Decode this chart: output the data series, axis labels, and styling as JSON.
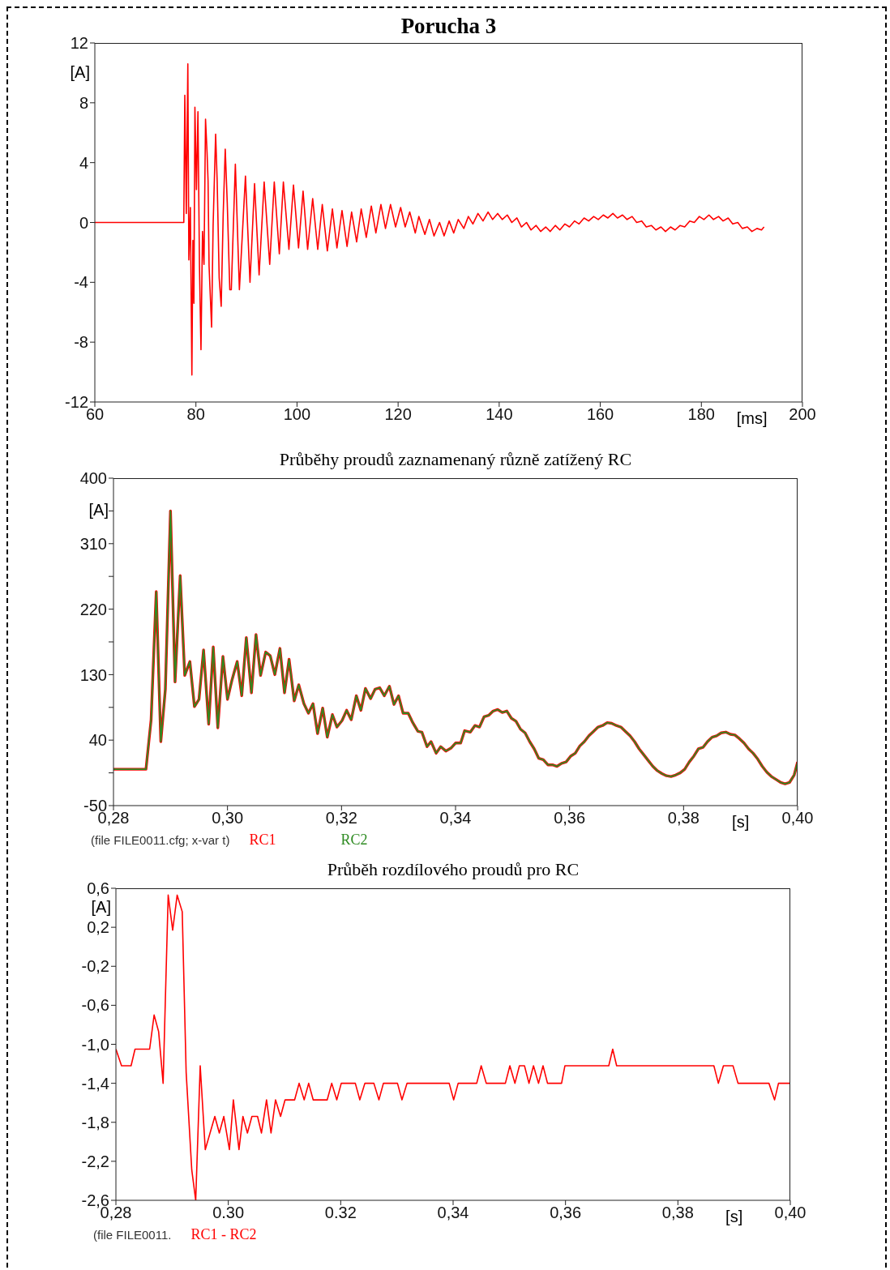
{
  "chart_data": [
    {
      "type": "line",
      "title": "Porucha 3",
      "xlabel": "[ms]",
      "ylabel": "[A]",
      "color": "#ff0000",
      "xlim": [
        60,
        200
      ],
      "xticks": [
        60,
        80,
        100,
        120,
        140,
        160,
        180,
        200
      ],
      "ylim": [
        -12,
        12
      ],
      "yticks": [
        12,
        8,
        4,
        0,
        -4,
        -8,
        -12
      ],
      "x": [
        60,
        77.6,
        77.8,
        78.1,
        78.4,
        78.6,
        78.9,
        79.2,
        79.4,
        79.6,
        79.8,
        80.1,
        80.4,
        80.7,
        81.0,
        81.3,
        81.6,
        81.9,
        82.2,
        82.4,
        82.6,
        83.1,
        83.4,
        83.9,
        84.2,
        84.6,
        85.0,
        85.4,
        85.8,
        86.2,
        86.7,
        87.0,
        87.8,
        88.6,
        89.8,
        90.7,
        91.6,
        92.5,
        93.5,
        94.6,
        95.5,
        96.5,
        97.3,
        98.4,
        99.3,
        100.3,
        101.2,
        102.1,
        103.1,
        104.1,
        105.0,
        106.0,
        107.0,
        107.9,
        108.9,
        109.9,
        110.8,
        111.8,
        112.7,
        113.7,
        114.7,
        115.6,
        116.6,
        117.5,
        118.5,
        119.5,
        120.5,
        121.4,
        122.3,
        123.4,
        124.1,
        125.3,
        126.2,
        127.1,
        128.2,
        129.1,
        130.1,
        131.0,
        131.9,
        133.0,
        133.9,
        134.8,
        135.8,
        136.8,
        137.8,
        138.7,
        139.7,
        140.6,
        141.6,
        142.5,
        143.5,
        144.4,
        145.4,
        146.3,
        147.3,
        148.2,
        149.2,
        150.1,
        151.1,
        152.0,
        153.0,
        153.9,
        154.9,
        155.8,
        156.8,
        157.7,
        158.7,
        159.6,
        160.6,
        161.5,
        162.5,
        163.4,
        164.4,
        165.3,
        166.3,
        167.2,
        168.2,
        169.1,
        170.1,
        171.0,
        172.0,
        172.9,
        173.9,
        174.8,
        175.8,
        176.7,
        177.7,
        178.6,
        179.6,
        180.5,
        181.5,
        182.4,
        183.4,
        184.3,
        185.3,
        186.2,
        187.2,
        188.1,
        189.1,
        190.0,
        191.0,
        191.9,
        192.4
      ],
      "values": [
        0,
        0,
        8.5,
        0.6,
        10.6,
        -2.5,
        1.0,
        -10.2,
        -1.2,
        -5.4,
        7.7,
        2.2,
        7.4,
        -2.9,
        -8.5,
        -0.6,
        -2.8,
        6.9,
        4.7,
        2.8,
        -2.9,
        -7.0,
        -0.2,
        5.9,
        2.8,
        -3.7,
        -5.6,
        0.6,
        4.9,
        1.3,
        -4.5,
        -4.5,
        3.9,
        -4.5,
        3.1,
        -4.0,
        2.6,
        -3.5,
        2.7,
        -2.8,
        2.7,
        -2.1,
        2.7,
        -1.8,
        2.5,
        -1.7,
        2.1,
        -1.8,
        1.6,
        -1.8,
        1.2,
        -1.9,
        0.9,
        -1.7,
        0.8,
        -1.6,
        0.7,
        -1.3,
        0.9,
        -1.0,
        1.1,
        -0.7,
        1.2,
        -0.4,
        1.2,
        -0.3,
        1.0,
        -0.3,
        0.7,
        -0.7,
        0.4,
        -0.8,
        0.2,
        -0.9,
        0.0,
        -0.9,
        0.1,
        -0.7,
        0.2,
        -0.4,
        0.4,
        -0.1,
        0.6,
        0.1,
        0.7,
        0.2,
        0.6,
        0.2,
        0.5,
        0.0,
        0.3,
        -0.3,
        0.0,
        -0.5,
        -0.2,
        -0.6,
        -0.3,
        -0.6,
        -0.2,
        -0.5,
        -0.1,
        -0.3,
        0.1,
        -0.1,
        0.3,
        0.1,
        0.4,
        0.2,
        0.5,
        0.3,
        0.6,
        0.3,
        0.5,
        0.2,
        0.4,
        0.0,
        0.1,
        -0.3,
        -0.2,
        -0.5,
        -0.3,
        -0.6,
        -0.3,
        -0.5,
        -0.2,
        -0.3,
        0.1,
        0.0,
        0.4,
        0.2,
        0.5,
        0.2,
        0.4,
        0.1,
        0.3,
        -0.1,
        0.0,
        -0.4,
        -0.3,
        -0.6,
        -0.4,
        -0.5,
        -0.3
      ]
    },
    {
      "type": "line",
      "title": "Průběhy proudů zaznamenaný různě zatížený RC",
      "xlabel": "[s]",
      "ylabel": "[A]",
      "legend": "bottom",
      "annotations": [
        "(file FILE0011.cfg; x-var t)"
      ],
      "xlim": [
        0.28,
        0.4
      ],
      "xticks": [
        {
          "value": 0.28,
          "label": "0,28"
        },
        {
          "value": 0.3,
          "label": "0,30"
        },
        {
          "value": 0.32,
          "label": "0,32"
        },
        {
          "value": 0.34,
          "label": "0,34"
        },
        {
          "value": 0.36,
          "label": "0,36"
        },
        {
          "value": 0.38,
          "label": "0,38"
        },
        {
          "value": 0.4,
          "label": "0,40"
        }
      ],
      "ylim": [
        -50,
        400
      ],
      "yticks": [
        400,
        {
          "value": 355,
          "label": null
        },
        310,
        {
          "value": 265,
          "label": null
        },
        220,
        {
          "value": 175,
          "label": null
        },
        130,
        {
          "value": 85,
          "label": null
        },
        40,
        {
          "value": -5,
          "label": null
        },
        -50
      ],
      "x": [
        0.28,
        0.2857,
        0.2866,
        0.2875,
        0.2883,
        0.2891,
        0.29,
        0.2908,
        0.2917,
        0.2925,
        0.2934,
        0.2942,
        0.295,
        0.2958,
        0.2967,
        0.2975,
        0.2983,
        0.2992,
        0.3,
        0.3008,
        0.3017,
        0.3025,
        0.3033,
        0.3042,
        0.305,
        0.3058,
        0.3067,
        0.3075,
        0.3083,
        0.3092,
        0.31,
        0.3108,
        0.3117,
        0.3125,
        0.3134,
        0.3142,
        0.315,
        0.3158,
        0.3167,
        0.3175,
        0.3184,
        0.3192,
        0.3201,
        0.3209,
        0.3217,
        0.3226,
        0.3234,
        0.3242,
        0.3251,
        0.3259,
        0.3267,
        0.3275,
        0.3284,
        0.3292,
        0.33,
        0.3308,
        0.3317,
        0.3325,
        0.3334,
        0.3341,
        0.335,
        0.3357,
        0.3366,
        0.3374,
        0.3383,
        0.3392,
        0.34,
        0.3409,
        0.3416,
        0.3426,
        0.3434,
        0.3442,
        0.345,
        0.3458,
        0.3466,
        0.3474,
        0.3482,
        0.349,
        0.3498,
        0.3506,
        0.3514,
        0.3522,
        0.353,
        0.3538,
        0.3546,
        0.3554,
        0.3562,
        0.357,
        0.3578,
        0.3586,
        0.3594,
        0.3602,
        0.361,
        0.3618,
        0.3626,
        0.3634,
        0.3642,
        0.365,
        0.3658,
        0.3666,
        0.3674,
        0.3682,
        0.369,
        0.3698,
        0.3706,
        0.3714,
        0.3722,
        0.373,
        0.3738,
        0.3746,
        0.3754,
        0.3762,
        0.377,
        0.3778,
        0.3786,
        0.3794,
        0.3802,
        0.381,
        0.3818,
        0.3826,
        0.3834,
        0.3842,
        0.385,
        0.3858,
        0.3866,
        0.3874,
        0.3882,
        0.389,
        0.3898,
        0.3906,
        0.3914,
        0.3922,
        0.393,
        0.3938,
        0.3946,
        0.3954,
        0.3962,
        0.397,
        0.3978,
        0.3986,
        0.3994,
        0.4
      ],
      "series": [
        {
          "name": "RC1",
          "color": "#ff0000",
          "values": [
            0,
            0,
            68,
            244,
            38,
            110,
            355,
            120,
            266,
            129,
            148,
            86,
            96,
            164,
            62,
            168,
            57,
            155,
            96,
            123,
            148,
            101,
            181,
            105,
            185,
            129,
            161,
            156,
            130,
            166,
            105,
            151,
            94,
            116,
            90,
            77,
            90,
            49,
            84,
            44,
            75,
            58,
            67,
            81,
            68,
            101,
            81,
            111,
            97,
            110,
            112,
            101,
            114,
            89,
            101,
            77,
            77,
            64,
            52,
            51,
            31,
            38,
            22,
            31,
            25,
            29,
            36,
            36,
            53,
            51,
            60,
            58,
            72,
            74,
            80,
            82,
            78,
            80,
            70,
            66,
            55,
            50,
            38,
            28,
            15,
            13,
            6,
            6,
            4,
            8,
            10,
            18,
            22,
            32,
            38,
            46,
            52,
            58,
            60,
            64,
            63,
            60,
            58,
            52,
            46,
            38,
            28,
            20,
            12,
            4,
            -2,
            -6,
            -9,
            -10,
            -8,
            -5,
            0,
            10,
            18,
            28,
            30,
            38,
            44,
            46,
            50,
            51,
            48,
            47,
            42,
            36,
            28,
            22,
            14,
            4,
            -4,
            -10,
            -14,
            -18,
            -20,
            -18,
            -8,
            10
          ]
        },
        {
          "name": "RC2",
          "color": "#2e8b22",
          "values": [
            0,
            0,
            68,
            244,
            38,
            110,
            355,
            120,
            266,
            129,
            148,
            86,
            96,
            164,
            62,
            168,
            57,
            155,
            96,
            123,
            148,
            101,
            181,
            105,
            185,
            129,
            161,
            156,
            130,
            166,
            105,
            151,
            94,
            116,
            90,
            77,
            90,
            49,
            84,
            44,
            75,
            58,
            67,
            81,
            68,
            101,
            81,
            111,
            97,
            110,
            112,
            101,
            114,
            89,
            101,
            77,
            77,
            64,
            52,
            51,
            31,
            38,
            22,
            31,
            25,
            29,
            36,
            36,
            53,
            51,
            60,
            58,
            72,
            74,
            80,
            82,
            78,
            80,
            70,
            66,
            55,
            50,
            38,
            28,
            15,
            13,
            6,
            6,
            4,
            8,
            10,
            18,
            22,
            32,
            38,
            46,
            52,
            58,
            60,
            64,
            63,
            60,
            58,
            52,
            46,
            38,
            28,
            20,
            12,
            4,
            -2,
            -6,
            -9,
            -10,
            -8,
            -5,
            0,
            10,
            18,
            28,
            30,
            38,
            44,
            46,
            50,
            51,
            48,
            47,
            42,
            36,
            28,
            22,
            14,
            4,
            -4,
            -10,
            -14,
            -18,
            -20,
            -18,
            -8,
            10
          ]
        }
      ]
    },
    {
      "type": "line",
      "title": "Průběh rozdílového proudů pro RC",
      "xlabel": "[s]",
      "ylabel": "[A]",
      "legend": "bottom",
      "annotations": [
        "(file FILE0011."
      ],
      "xlim": [
        0.28,
        0.4
      ],
      "xticks": [
        {
          "value": 0.28,
          "label": "0,28"
        },
        {
          "value": 0.3,
          "label": "0.30"
        },
        0.32,
        {
          "value": 0.34,
          "label": "0,34"
        },
        {
          "value": 0.36,
          "label": "0,36"
        },
        {
          "value": 0.38,
          "label": "0,38"
        },
        {
          "value": 0.4,
          "label": "0,40"
        }
      ],
      "ylim": [
        -2.6,
        0.6
      ],
      "yticks": [
        {
          "value": 0.6,
          "label": "0,6"
        },
        {
          "value": 0.2,
          "label": "0,2"
        },
        {
          "value": -0.2,
          "label": "-0,2"
        },
        {
          "value": -0.6,
          "label": "-0,6"
        },
        {
          "value": -1.0,
          "label": "-1,0"
        },
        {
          "value": -1.4,
          "label": "-1,4"
        },
        {
          "value": -1.8,
          "label": "-1,8"
        },
        {
          "value": -2.2,
          "label": "-2,2"
        },
        {
          "value": -2.6,
          "label": "-2,6"
        }
      ],
      "x": [
        0.28,
        0.281,
        0.2827,
        0.2834,
        0.286,
        0.2868,
        0.2876,
        0.2884,
        0.2893,
        0.2901,
        0.2909,
        0.2918,
        0.2925,
        0.2935,
        0.2942,
        0.295,
        0.2959,
        0.2976,
        0.2984,
        0.2992,
        0.3002,
        0.3009,
        0.3019,
        0.3026,
        0.3034,
        0.3042,
        0.3052,
        0.3059,
        0.3068,
        0.3076,
        0.3084,
        0.3093,
        0.3101,
        0.3118,
        0.3126,
        0.3135,
        0.3143,
        0.3151,
        0.3176,
        0.3184,
        0.3193,
        0.3201,
        0.3226,
        0.3234,
        0.3243,
        0.3259,
        0.3268,
        0.3276,
        0.3301,
        0.3309,
        0.3318,
        0.3393,
        0.3401,
        0.3409,
        0.3442,
        0.345,
        0.3459,
        0.3493,
        0.3501,
        0.351,
        0.3518,
        0.3527,
        0.3535,
        0.3543,
        0.3552,
        0.356,
        0.3568,
        0.3593,
        0.3599,
        0.3677,
        0.3684,
        0.3691,
        0.3864,
        0.3872,
        0.3881,
        0.3898,
        0.3907,
        0.3962,
        0.3972,
        0.3979,
        0.4
      ],
      "series": [
        {
          "name": "RC1 - RC2",
          "color": "#ff0000",
          "values": [
            -1.05,
            -1.22,
            -1.22,
            -1.05,
            -1.05,
            -0.7,
            -0.87,
            -1.4,
            0.53,
            0.17,
            0.53,
            0.36,
            -1.29,
            -2.29,
            -2.6,
            -1.22,
            -2.08,
            -1.74,
            -1.91,
            -1.74,
            -2.08,
            -1.57,
            -2.08,
            -1.74,
            -1.91,
            -1.74,
            -1.74,
            -1.91,
            -1.57,
            -1.91,
            -1.57,
            -1.74,
            -1.57,
            -1.57,
            -1.4,
            -1.57,
            -1.4,
            -1.57,
            -1.57,
            -1.4,
            -1.57,
            -1.4,
            -1.4,
            -1.57,
            -1.4,
            -1.4,
            -1.57,
            -1.4,
            -1.4,
            -1.57,
            -1.4,
            -1.4,
            -1.57,
            -1.4,
            -1.4,
            -1.22,
            -1.4,
            -1.4,
            -1.22,
            -1.4,
            -1.22,
            -1.22,
            -1.4,
            -1.22,
            -1.4,
            -1.22,
            -1.4,
            -1.4,
            -1.22,
            -1.22,
            -1.05,
            -1.22,
            -1.22,
            -1.4,
            -1.22,
            -1.22,
            -1.4,
            -1.4,
            -1.57,
            -1.4,
            -1.4
          ]
        }
      ]
    }
  ]
}
